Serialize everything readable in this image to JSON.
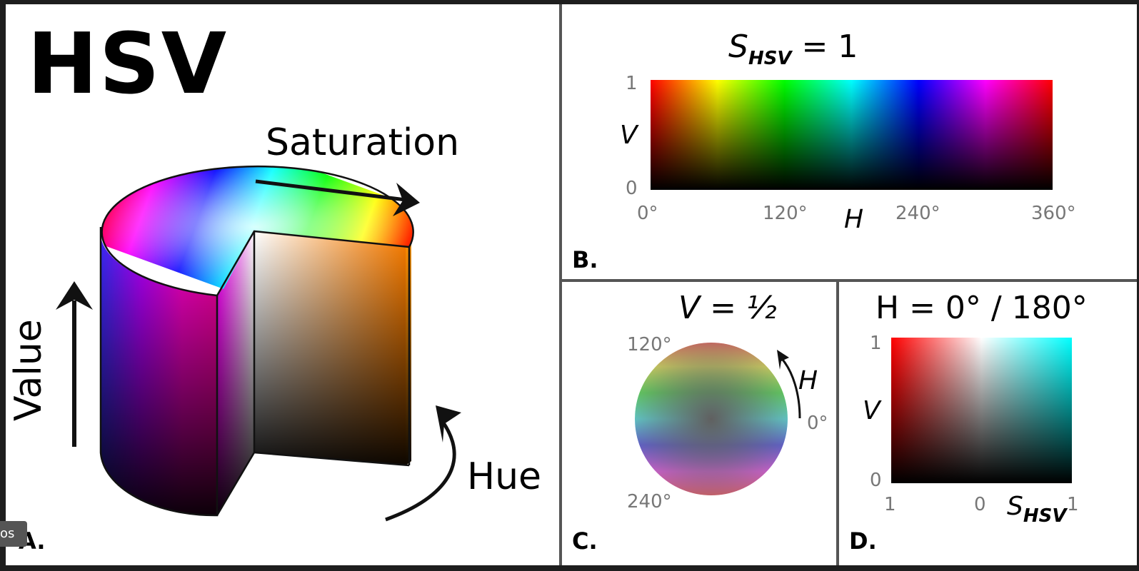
{
  "panel_a": {
    "title": "HSV",
    "saturation_label": "Saturation",
    "value_label": "Value",
    "hue_label": "Hue",
    "letter": "A."
  },
  "panel_b": {
    "equation_main": "S",
    "equation_sub": "HSV",
    "equation_rest": " = 1",
    "v_axis": "V",
    "v_top": "1",
    "v_bottom": "0",
    "h_axis": "H",
    "h_ticks": [
      "0°",
      "120°",
      "240°",
      "360°"
    ],
    "letter": "B."
  },
  "panel_c": {
    "equation": "V = ½",
    "deg_120": "120°",
    "deg_240": "240°",
    "deg_0": "0°",
    "h_axis": "H",
    "letter": "C."
  },
  "panel_d": {
    "equation": "H = 0° / 180°",
    "v_axis": "V",
    "v_top": "1",
    "v_bottom": "0",
    "s_left": "1",
    "s_mid": "0",
    "s_right": "1",
    "s_axis_main": "S",
    "s_axis_sub": "HSV",
    "letter": "D."
  },
  "overlay": {
    "tag": "os"
  }
}
